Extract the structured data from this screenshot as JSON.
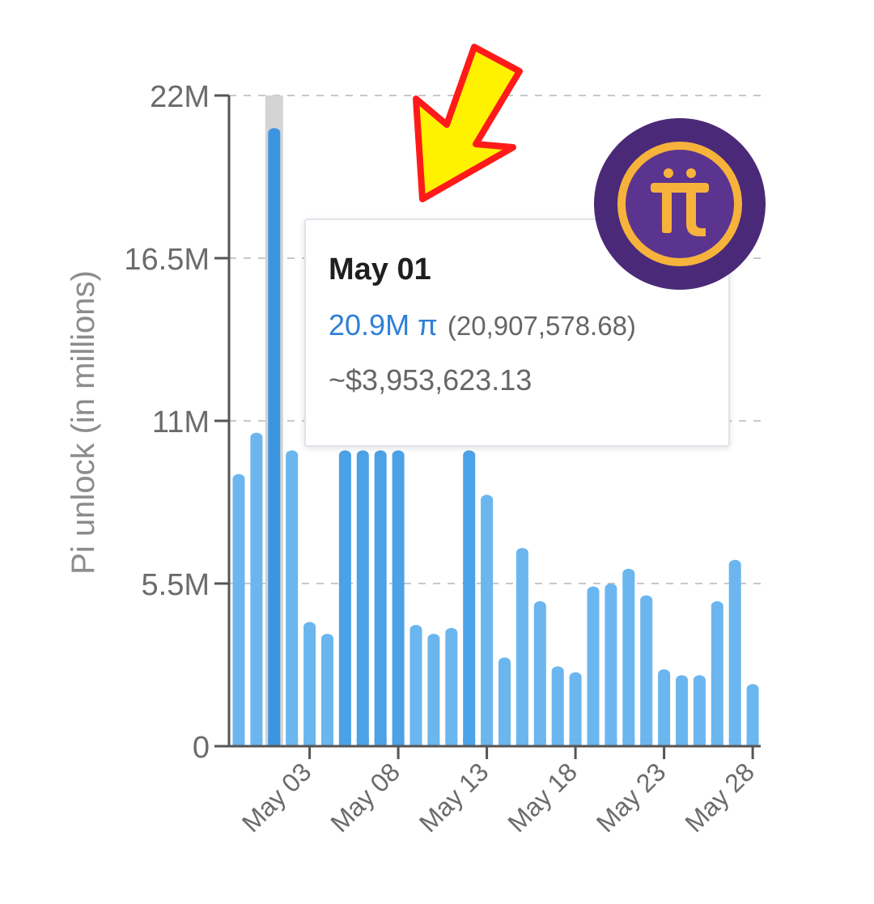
{
  "chart_data": {
    "type": "bar",
    "ylabel": "Pi unlock (in millions)",
    "xlabel": "",
    "ylim": [
      0,
      22
    ],
    "yticks": [
      0,
      5.5,
      11,
      16.5,
      22
    ],
    "ytick_labels": [
      "0",
      "5.5M",
      "11M",
      "16.5M",
      "22M"
    ],
    "xtick_labels": [
      "May 03",
      "May 08",
      "May 13",
      "May 18",
      "May 23",
      "May 28"
    ],
    "grid": "horizontal dashed",
    "categories": [
      "Apr 29",
      "Apr 30",
      "May 01",
      "May 02",
      "May 03",
      "May 04",
      "May 05",
      "May 06",
      "May 07",
      "May 08",
      "May 09",
      "May 10",
      "May 11",
      "May 12",
      "May 13",
      "May 14",
      "May 15",
      "May 16",
      "May 17",
      "May 18",
      "May 19",
      "May 20",
      "May 21",
      "May 22",
      "May 23",
      "May 24",
      "May 25",
      "May 26",
      "May 27",
      "May 28"
    ],
    "values": [
      9.2,
      10.6,
      20.9,
      10.0,
      4.2,
      3.8,
      10.0,
      10.0,
      10.0,
      10.0,
      4.1,
      3.8,
      4.0,
      10.0,
      8.5,
      3.0,
      6.7,
      4.9,
      2.7,
      2.5,
      5.4,
      5.5,
      6.0,
      5.1,
      2.6,
      2.4,
      2.4,
      4.9,
      6.3,
      2.1
    ],
    "highlighted_category": "May 01",
    "colors": {
      "bar": "#6bb6ef",
      "bar_dark": "#4ca2e6",
      "highlight": "#3c95e0",
      "hover_band": "#d4d4d4",
      "grid": "#c8c8c8",
      "axis": "#555555"
    }
  },
  "tooltip": {
    "date": "May 01",
    "amount_short": "20.9M π",
    "amount_exact": "(20,907,578.68)",
    "usd": "~$3,953,623.13"
  },
  "logo": {
    "glyph": "π",
    "icon": "pi-network-logo",
    "colors": {
      "outer": "#4a2a78",
      "inner": "#5b348f",
      "ring": "#f7b23b"
    }
  },
  "annotation": {
    "icon": "arrow-down-left-icon",
    "colors": {
      "fill": "#fff200",
      "stroke": "#ff1a1a"
    }
  }
}
